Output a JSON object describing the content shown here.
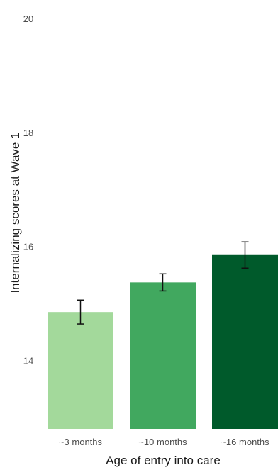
{
  "chart_data": {
    "type": "bar",
    "title": "",
    "xlabel": "Age of entry into care",
    "ylabel": "Internalizing scores at Wave 1",
    "categories": [
      "~3 months",
      "~10 months",
      "~16 months"
    ],
    "values": [
      14.85,
      15.37,
      15.85
    ],
    "error": [
      {
        "low": 14.64,
        "high": 15.06
      },
      {
        "low": 15.22,
        "high": 15.52
      },
      {
        "low": 15.62,
        "high": 16.08
      }
    ],
    "colors": [
      "#a3d99b",
      "#41a85f",
      "#005a2b"
    ],
    "yticks": [
      14,
      16,
      18,
      20
    ],
    "ytick_labels": [
      "14",
      "16",
      "18",
      "20"
    ],
    "ylim": [
      12.8,
      20.2
    ],
    "grid": false,
    "legend": "none"
  }
}
